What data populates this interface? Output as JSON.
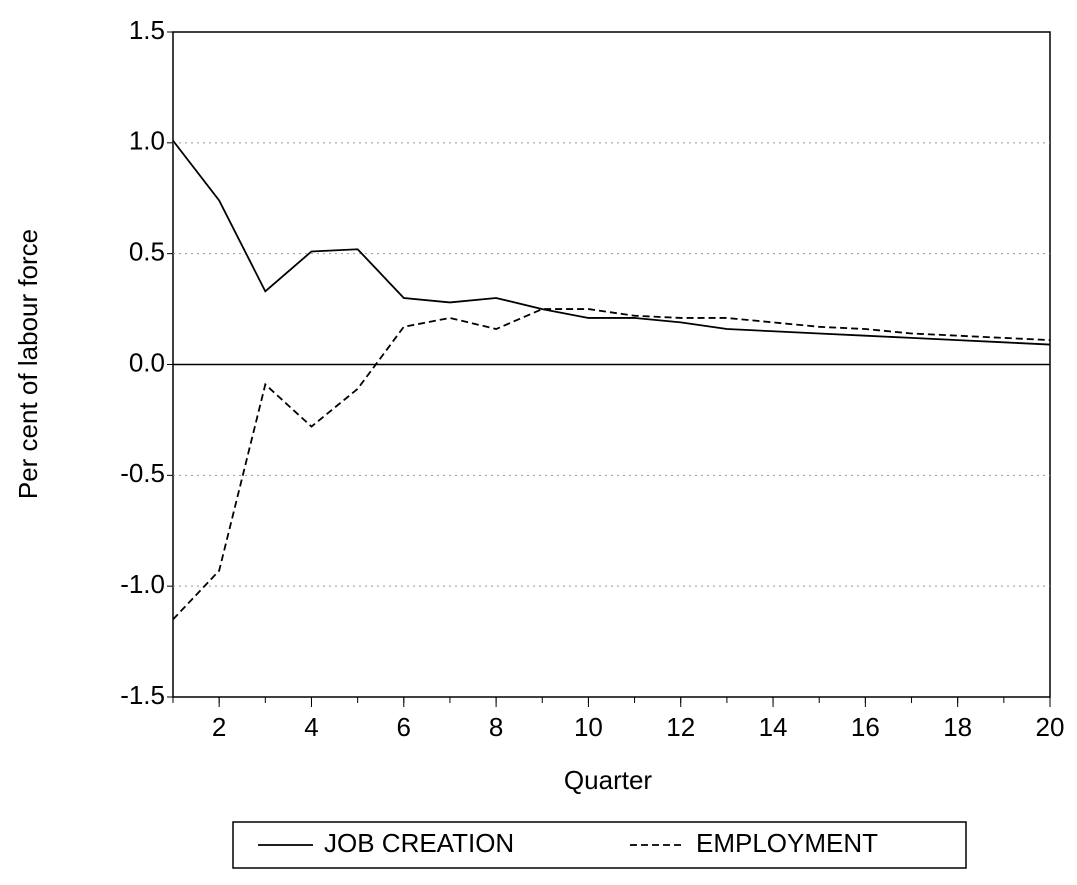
{
  "chart_data": {
    "type": "line",
    "x_label": "Quarter",
    "y_label": "Per cent of labour force",
    "x": [
      1,
      2,
      3,
      4,
      5,
      6,
      7,
      8,
      9,
      10,
      11,
      12,
      13,
      14,
      15,
      16,
      17,
      18,
      19,
      20
    ],
    "series": [
      {
        "name": "JOB CREATION",
        "color": "#000000",
        "line_style": "solid",
        "values": [
          1.01,
          0.74,
          0.33,
          0.51,
          0.52,
          0.3,
          0.28,
          0.3,
          0.25,
          0.21,
          0.21,
          0.19,
          0.16,
          0.15,
          0.14,
          0.13,
          0.12,
          0.11,
          0.1,
          0.09
        ]
      },
      {
        "name": "EMPLOYMENT",
        "color": "#000000",
        "line_style": "dashed",
        "values": [
          -1.15,
          -0.93,
          -0.09,
          -0.28,
          -0.11,
          0.17,
          0.21,
          0.16,
          0.25,
          0.25,
          0.22,
          0.21,
          0.21,
          0.19,
          0.17,
          0.16,
          0.14,
          0.13,
          0.12,
          0.11
        ]
      }
    ],
    "xlim": [
      1,
      20
    ],
    "xticks": [
      2,
      4,
      6,
      8,
      10,
      12,
      14,
      16,
      18,
      20
    ],
    "ylim": [
      -1.5,
      1.5
    ],
    "yticks": [
      1.5,
      {
        "value": 1,
        "label": "1.0"
      },
      0.5,
      {
        "value": 0,
        "label": "0.0"
      },
      -0.5,
      {
        "value": -1,
        "label": "-1.0"
      },
      -1.5
    ],
    "grid": true,
    "zero_line": true,
    "legend": "bottom"
  }
}
